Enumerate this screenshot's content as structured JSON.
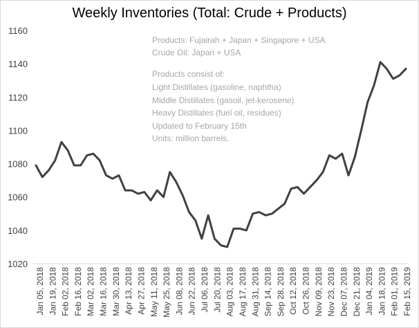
{
  "chart_data": {
    "type": "line",
    "title": "Weekly Inventories (Total: Crude + Products)",
    "xlabel": "",
    "ylabel": "",
    "ylim": [
      1020,
      1160
    ],
    "yticks": [
      1020,
      1040,
      1060,
      1080,
      1100,
      1120,
      1140,
      1160
    ],
    "grid": false,
    "legend": "none",
    "line_color": "#404040",
    "x_tick_labels": [
      "Jan 05, 2018",
      "Jan 19, 2018",
      "Feb 02, 2018",
      "Feb 16, 2018",
      "Mar 02, 2018",
      "Mar 16, 2018",
      "Mar 30, 2018",
      "Apr 13, 2018",
      "Apr 27, 2018",
      "May 11, 2018",
      "May 25, 2018",
      "Jun 08, 2018",
      "Jun 22, 2018",
      "Jul 06, 2018",
      "Jul 20, 2018",
      "Aug 03, 2018",
      "Aug 17, 2018",
      "Aug 31, 2018",
      "Sep 14, 2018",
      "Sep 28, 2018",
      "Oct 12, 2018",
      "Oct 26, 2018",
      "Nov 09, 2018",
      "Nov 23, 2018",
      "Dec 07, 2018",
      "Dec 21, 2018",
      "Jan 04, 2019",
      "Jan 18, 2019",
      "Feb 01, 2019",
      "Feb 15, 2019"
    ],
    "values": [
      1079,
      1072,
      1076,
      1082,
      1093,
      1088,
      1079,
      1079,
      1085,
      1086,
      1082,
      1073,
      1071,
      1073,
      1064,
      1064,
      1062,
      1063,
      1058,
      1064,
      1060,
      1075,
      1069,
      1061,
      1051,
      1046,
      1035,
      1049,
      1035,
      1031,
      1030,
      1041,
      1041,
      1040,
      1050,
      1051,
      1049,
      1050,
      1053,
      1056,
      1065,
      1066,
      1062,
      1066,
      1070,
      1075,
      1085,
      1083,
      1086,
      1073,
      1084,
      1100,
      1117,
      1127,
      1141,
      1137,
      1131,
      1133,
      1137
    ],
    "annotations": [
      "Products: Fujairah + Japan + Singapore  + USA",
      "Crude Oil: Japan + USA",
      "Products consist of:",
      "Light Distillates (gasoline, naphtha)",
      "Middle Distillates (gasoil, jet-kerosene)",
      "Heavy Distillates (fuel oil, residues)",
      "Updated to February 15th",
      "Units: million barrels."
    ]
  }
}
